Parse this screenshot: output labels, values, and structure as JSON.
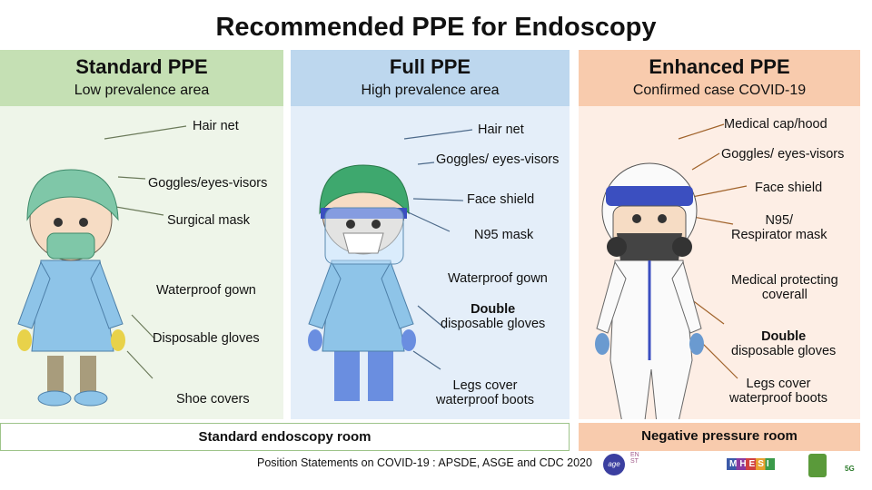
{
  "title": "Recommended PPE for Endoscopy",
  "panels": [
    {
      "heading": "Standard PPE",
      "subheading": "Low prevalence area",
      "header_color": "#c5e0b4",
      "body_color": "#eef5e9",
      "labels": [
        "Hair net",
        "Goggles/eyes-visors",
        "Surgical mask",
        "Waterproof gown",
        "Disposable gloves",
        "Shoe covers"
      ]
    },
    {
      "heading": "Full PPE",
      "subheading": "High prevalence area",
      "header_color": "#bdd7ee",
      "body_color": "#e4eef9",
      "labels": [
        "Hair net",
        "Goggles/ eyes-visors",
        "Face shield",
        "N95 mask",
        "Waterproof gown"
      ],
      "gloves_bold": "Double",
      "gloves_text": "disposable gloves",
      "legs_1": "Legs cover",
      "legs_2": "waterproof  boots"
    },
    {
      "heading": "Enhanced PPE",
      "subheading": "Confirmed case COVID-19",
      "header_color": "#f8cbad",
      "body_color": "#fdeee5",
      "labels": [
        "Medical cap/hood",
        "Goggles/ eyes-visors",
        "Face shield"
      ],
      "n95_1": "N95/",
      "n95_2": "Respirator mask",
      "coverall_1": "Medical protecting",
      "coverall_2": "coverall",
      "gloves_bold": "Double",
      "gloves_text": "disposable gloves",
      "legs_1": "Legs cover",
      "legs_2": "waterproof boots"
    }
  ],
  "rooms": {
    "standard": "Standard endoscopy room",
    "negative": "Negative pressure room"
  },
  "footer": "Position Statements on COVID-19 : APSDE, ASGE and CDC 2020",
  "logos": {
    "age": "age",
    "enst": "ENST",
    "mhesi": "MHESI",
    "sg": "5G"
  }
}
